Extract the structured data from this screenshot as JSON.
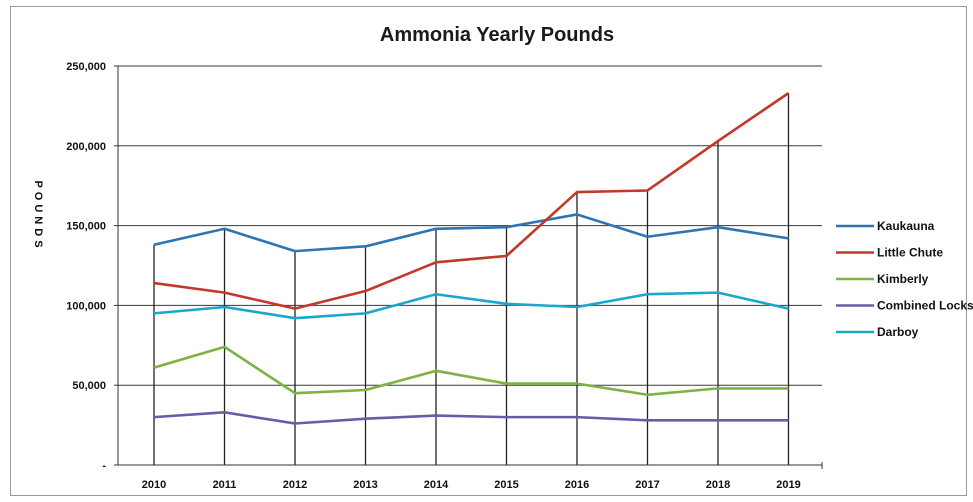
{
  "chart_data": {
    "type": "line",
    "title": "Ammonia Yearly Pounds",
    "ylabel": "POUNDS",
    "xlabel": "",
    "categories": [
      "2010",
      "2011",
      "2012",
      "2013",
      "2014",
      "2015",
      "2016",
      "2017",
      "2018",
      "2019"
    ],
    "ylim": [
      0,
      250000
    ],
    "yticks": [
      {
        "value": 0,
        "label": "-"
      },
      {
        "value": 50000,
        "label": "50,000"
      },
      {
        "value": 100000,
        "label": "100,000"
      },
      {
        "value": 150000,
        "label": "150,000"
      },
      {
        "value": 200000,
        "label": "200,000"
      },
      {
        "value": 250000,
        "label": "250,000"
      }
    ],
    "grid": true,
    "legend_position": "right",
    "series": [
      {
        "name": "Kaukauna",
        "color": "#2e75b6",
        "values": [
          138000,
          148000,
          134000,
          137000,
          148000,
          149000,
          157000,
          143000,
          149000,
          142000
        ]
      },
      {
        "name": "Little Chute",
        "color": "#c0392b",
        "values": [
          114000,
          108000,
          98000,
          109000,
          127000,
          131000,
          171000,
          172000,
          203000,
          233000
        ]
      },
      {
        "name": "Kimberly",
        "color": "#7cb342",
        "values": [
          61000,
          74000,
          45000,
          47000,
          59000,
          51000,
          51000,
          44000,
          48000,
          48000
        ]
      },
      {
        "name": "Combined Locks",
        "color": "#6a5ba8",
        "values": [
          30000,
          33000,
          26000,
          29000,
          31000,
          30000,
          30000,
          28000,
          28000,
          28000
        ]
      },
      {
        "name": "Darboy",
        "color": "#1aa6cf",
        "values": [
          95000,
          99000,
          92000,
          95000,
          107000,
          101000,
          99000,
          107000,
          108000,
          98000
        ]
      }
    ]
  }
}
